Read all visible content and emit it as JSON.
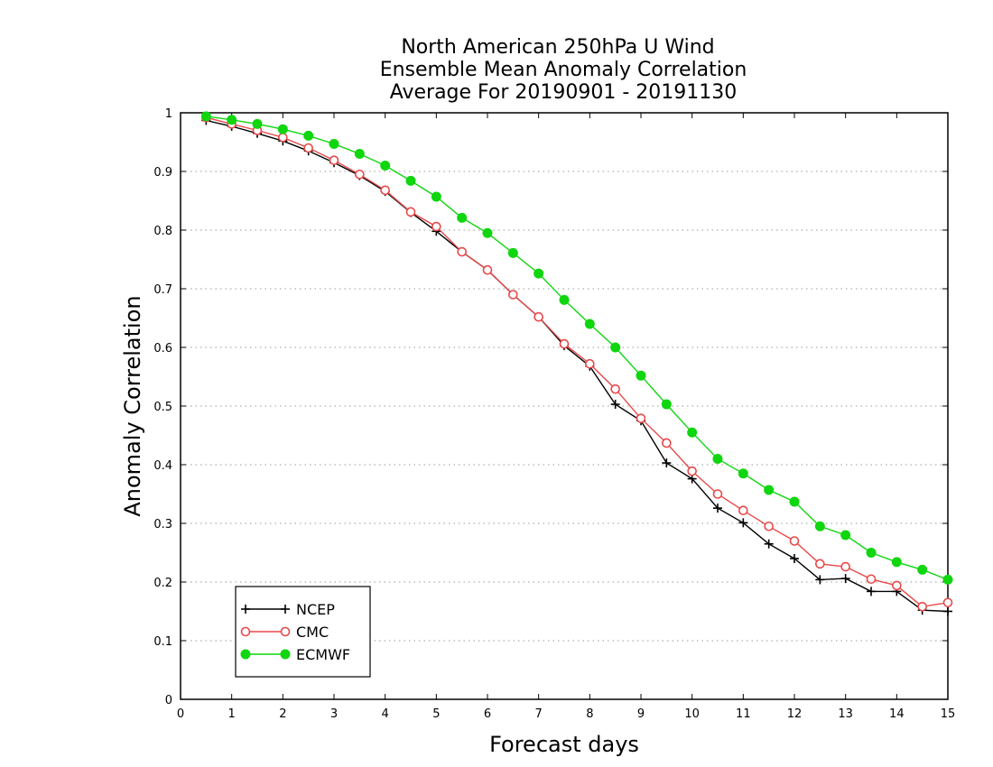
{
  "chart_data": {
    "type": "line",
    "title_lines": [
      "North American 250hPa U Wind",
      "Ensemble Mean Anomaly Correlation",
      "Average For 20190901 - 20191130"
    ],
    "xlabel": "Forecast days",
    "ylabel": "Anomaly Correlation",
    "xlim": [
      0,
      15
    ],
    "ylim": [
      0,
      1
    ],
    "x_ticks": [
      "0",
      "1",
      "2",
      "3",
      "4",
      "5",
      "6",
      "7",
      "8",
      "9",
      "10",
      "11",
      "12",
      "13",
      "14",
      "15"
    ],
    "y_ticks": [
      "0",
      "0.1",
      "0.2",
      "0.3",
      "0.4",
      "0.5",
      "0.6",
      "0.7",
      "0.8",
      "0.9",
      "1"
    ],
    "grid": "horizontal-dotted",
    "legend_position": "bottom-left",
    "x": [
      0.5,
      1,
      1.5,
      2,
      2.5,
      3,
      3.5,
      4,
      4.5,
      5,
      5.5,
      6,
      6.5,
      7,
      7.5,
      8,
      8.5,
      9,
      9.5,
      10,
      10.5,
      11,
      11.5,
      12,
      12.5,
      13,
      13.5,
      14,
      14.5,
      15
    ],
    "series": [
      {
        "name": "NCEP",
        "color": "#000000",
        "marker": "plus",
        "values": [
          0.987,
          0.977,
          0.965,
          0.952,
          0.935,
          0.915,
          0.893,
          0.866,
          0.83,
          0.798,
          0.763,
          0.732,
          0.69,
          0.652,
          0.603,
          0.568,
          0.503,
          0.475,
          0.403,
          0.376,
          0.326,
          0.301,
          0.265,
          0.24,
          0.204,
          0.206,
          0.184,
          0.184,
          0.152,
          0.15
        ]
      },
      {
        "name": "CMC",
        "color": "#e8494a",
        "marker": "open-circle",
        "values": [
          0.992,
          0.981,
          0.97,
          0.958,
          0.94,
          0.919,
          0.895,
          0.868,
          0.831,
          0.806,
          0.763,
          0.732,
          0.69,
          0.652,
          0.606,
          0.572,
          0.529,
          0.479,
          0.437,
          0.389,
          0.35,
          0.322,
          0.295,
          0.27,
          0.231,
          0.226,
          0.205,
          0.194,
          0.158,
          0.165
        ]
      },
      {
        "name": "ECMWF",
        "color": "#0fd60f",
        "marker": "filled-circle",
        "values": [
          0.994,
          0.988,
          0.981,
          0.972,
          0.961,
          0.947,
          0.93,
          0.91,
          0.884,
          0.857,
          0.821,
          0.795,
          0.761,
          0.726,
          0.681,
          0.64,
          0.6,
          0.552,
          0.503,
          0.455,
          0.41,
          0.385,
          0.357,
          0.337,
          0.295,
          0.28,
          0.25,
          0.234,
          0.221,
          0.204
        ]
      }
    ]
  }
}
